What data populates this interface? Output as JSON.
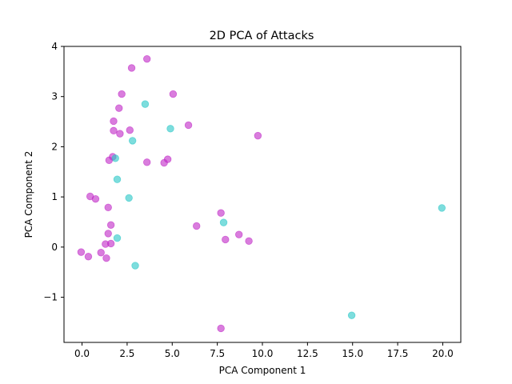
{
  "chart_data": {
    "type": "scatter",
    "title": "2D PCA of Attacks",
    "xlabel": "PCA Component 1",
    "ylabel": "PCA Component 2",
    "xlim": [
      -1.0,
      21.0
    ],
    "ylim": [
      -1.9,
      4.0
    ],
    "xticks": [
      0.0,
      2.5,
      5.0,
      7.5,
      10.0,
      12.5,
      15.0,
      17.5,
      20.0
    ],
    "xtick_labels": [
      "0.0",
      "2.5",
      "5.0",
      "7.5",
      "10.0",
      "12.5",
      "15.0",
      "17.5",
      "20.0"
    ],
    "yticks": [
      -1,
      0,
      1,
      2,
      3,
      4
    ],
    "ytick_labels": [
      "−1",
      "0",
      "1",
      "2",
      "3",
      "4"
    ],
    "grid": false,
    "legend": false,
    "marker_alpha": 0.6,
    "series": [
      {
        "color": "#c026c6",
        "points": [
          [
            3.6,
            3.75
          ],
          [
            2.75,
            3.57
          ],
          [
            2.2,
            3.05
          ],
          [
            5.05,
            3.05
          ],
          [
            2.05,
            2.77
          ],
          [
            1.75,
            2.51
          ],
          [
            5.9,
            2.43
          ],
          [
            1.75,
            2.32
          ],
          [
            2.65,
            2.33
          ],
          [
            2.1,
            2.26
          ],
          [
            9.75,
            2.22
          ],
          [
            1.7,
            1.8
          ],
          [
            1.5,
            1.73
          ],
          [
            3.6,
            1.69
          ],
          [
            4.75,
            1.75
          ],
          [
            4.55,
            1.68
          ],
          [
            0.45,
            1.01
          ],
          [
            0.75,
            0.96
          ],
          [
            1.45,
            0.79
          ],
          [
            7.7,
            0.68
          ],
          [
            1.6,
            0.44
          ],
          [
            6.35,
            0.42
          ],
          [
            1.45,
            0.27
          ],
          [
            8.7,
            0.25
          ],
          [
            7.95,
            0.15
          ],
          [
            9.25,
            0.12
          ],
          [
            1.3,
            0.06
          ],
          [
            1.6,
            0.07
          ],
          [
            -0.05,
            -0.1
          ],
          [
            1.05,
            -0.11
          ],
          [
            0.35,
            -0.19
          ],
          [
            1.35,
            -0.22
          ],
          [
            7.7,
            -1.62
          ]
        ]
      },
      {
        "color": "#26c6c6",
        "points": [
          [
            3.5,
            2.85
          ],
          [
            4.9,
            2.36
          ],
          [
            2.8,
            2.12
          ],
          [
            1.85,
            1.77
          ],
          [
            1.95,
            1.35
          ],
          [
            2.6,
            0.98
          ],
          [
            7.85,
            0.49
          ],
          [
            1.95,
            0.18
          ],
          [
            2.95,
            -0.37
          ],
          [
            19.95,
            0.78
          ],
          [
            14.95,
            -1.36
          ]
        ]
      }
    ]
  }
}
